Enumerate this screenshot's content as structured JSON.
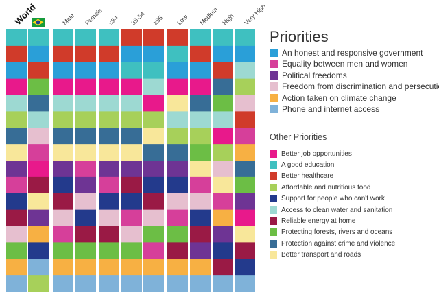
{
  "chart_data": {
    "type": "stacked-bar-rank",
    "columns": [
      {
        "label": "World",
        "bold": true,
        "ranks": [
          "education",
          "healthcare",
          "honest_gov",
          "jobs",
          "water",
          "food",
          "crime",
          "transport",
          "political",
          "equality",
          "support_poor",
          "energy",
          "discrimination",
          "forests",
          "climate",
          "phone"
        ]
      },
      {
        "label": "",
        "flag": "brazil",
        "ranks": [
          "education",
          "honest_gov",
          "healthcare",
          "forests",
          "crime",
          "water",
          "discrimination",
          "equality",
          "jobs",
          "energy",
          "transport",
          "political",
          "climate",
          "support_poor",
          "phone",
          "food"
        ]
      },
      {
        "label": "Male",
        "ranks": [
          "education",
          "healthcare",
          "honest_gov",
          "jobs",
          "water",
          "food",
          "crime",
          "transport",
          "political",
          "support_poor",
          "energy",
          "discrimination",
          "equality",
          "forests",
          "climate",
          "phone"
        ]
      },
      {
        "label": "Female",
        "ranks": [
          "education",
          "healthcare",
          "honest_gov",
          "jobs",
          "water",
          "food",
          "crime",
          "transport",
          "equality",
          "political",
          "discrimination",
          "support_poor",
          "energy",
          "forests",
          "climate",
          "phone"
        ]
      },
      {
        "label": "≤34",
        "ranks": [
          "education",
          "healthcare",
          "honest_gov",
          "jobs",
          "water",
          "food",
          "crime",
          "transport",
          "political",
          "equality",
          "support_poor",
          "discrimination",
          "energy",
          "forests",
          "climate",
          "phone"
        ]
      },
      {
        "label": "35-54",
        "ranks": [
          "healthcare",
          "honest_gov",
          "education",
          "jobs",
          "water",
          "food",
          "crime",
          "transport",
          "political",
          "energy",
          "support_poor",
          "equality",
          "discrimination",
          "forests",
          "climate",
          "phone"
        ]
      },
      {
        "label": "≥55",
        "ranks": [
          "healthcare",
          "honest_gov",
          "education",
          "water",
          "jobs",
          "food",
          "transport",
          "crime",
          "political",
          "support_poor",
          "energy",
          "discrimination",
          "forests",
          "equality",
          "climate",
          "phone"
        ]
      },
      {
        "label": "Low",
        "ranks": [
          "healthcare",
          "education",
          "honest_gov",
          "jobs",
          "transport",
          "water",
          "food",
          "crime",
          "political",
          "support_poor",
          "discrimination",
          "equality",
          "forests",
          "energy",
          "climate",
          "phone"
        ]
      },
      {
        "label": "Medium",
        "ranks": [
          "education",
          "healthcare",
          "honest_gov",
          "jobs",
          "crime",
          "water",
          "food",
          "forests",
          "transport",
          "equality",
          "discrimination",
          "support_poor",
          "energy",
          "political",
          "climate",
          "phone"
        ]
      },
      {
        "label": "High",
        "ranks": [
          "education",
          "honest_gov",
          "healthcare",
          "crime",
          "forests",
          "water",
          "jobs",
          "food",
          "discrimination",
          "transport",
          "equality",
          "climate",
          "political",
          "support_poor",
          "energy",
          "phone"
        ]
      },
      {
        "label": "Very High",
        "ranks": [
          "education",
          "honest_gov",
          "water",
          "food",
          "discrimination",
          "healthcare",
          "equality",
          "climate",
          "crime",
          "forests",
          "political",
          "jobs",
          "transport",
          "energy",
          "support_poor",
          "phone"
        ]
      }
    ]
  },
  "legend": {
    "title": "Priorities",
    "priorities": [
      {
        "key": "honest_gov",
        "label": "An honest and responsive government",
        "color": "#2a9fd8"
      },
      {
        "key": "equality",
        "label": "Equality between men and women",
        "color": "#d63f9a"
      },
      {
        "key": "political",
        "label": "Political freedoms",
        "color": "#6e3494"
      },
      {
        "key": "discrimination",
        "label": "Freedom from discrimination and persecution",
        "color": "#e6bfcf"
      },
      {
        "key": "climate",
        "label": "Action taken on climate change",
        "color": "#f7b043"
      },
      {
        "key": "phone",
        "label": "Phone and internet access",
        "color": "#7fb2d9"
      }
    ],
    "other_title": "Other Priorities",
    "other": [
      {
        "key": "jobs",
        "label": "Better job opportunities",
        "color": "#e8198b"
      },
      {
        "key": "education",
        "label": "A good education",
        "color": "#3fc0c0"
      },
      {
        "key": "healthcare",
        "label": "Better healthcare",
        "color": "#d03b2a"
      },
      {
        "key": "food",
        "label": "Affordable and nutritious food",
        "color": "#a7d05a"
      },
      {
        "key": "support_poor",
        "label": "Support for people who can't work",
        "color": "#233a8c"
      },
      {
        "key": "water",
        "label": "Access to clean water and sanitation",
        "color": "#9dd9d2"
      },
      {
        "key": "energy",
        "label": "Reliable energy at home",
        "color": "#9a1a45"
      },
      {
        "key": "forests",
        "label": "Protecting forests, rivers and oceans",
        "color": "#6cbe45"
      },
      {
        "key": "crime",
        "label": "Protection against crime and violence",
        "color": "#376d96"
      },
      {
        "key": "transport",
        "label": "Better transport and roads",
        "color": "#f8e79a"
      }
    ]
  }
}
